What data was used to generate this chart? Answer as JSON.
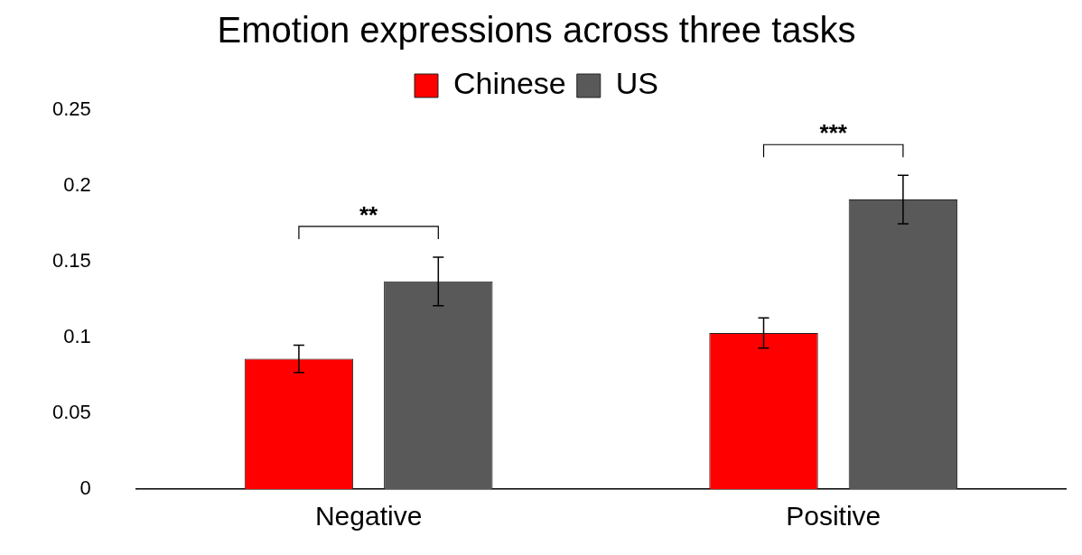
{
  "chart_data": {
    "type": "bar",
    "title": "Emotion expressions across three tasks",
    "categories": [
      "Negative",
      "Positive"
    ],
    "series": [
      {
        "name": "Chinese",
        "color": "#ff0000",
        "values": [
          0.086,
          0.103
        ],
        "errors": [
          0.009,
          0.01
        ]
      },
      {
        "name": "US",
        "color": "#595959",
        "values": [
          0.137,
          0.191
        ],
        "errors": [
          0.016,
          0.016
        ]
      }
    ],
    "ylim": [
      0,
      0.25
    ],
    "yticks": [
      0,
      0.05,
      0.1,
      0.15,
      0.2,
      0.25
    ],
    "grid": false,
    "legend": "top",
    "annotations": [
      "**",
      "***"
    ]
  }
}
